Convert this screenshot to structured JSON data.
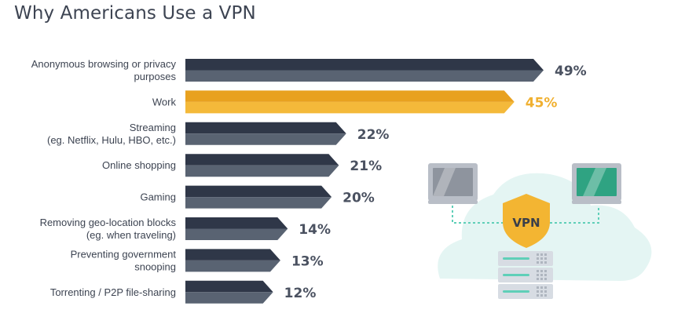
{
  "chart_data": {
    "type": "bar",
    "orientation": "horizontal",
    "title": "Why Americans Use a VPN",
    "categories": [
      [
        "Anonymous browsing or privacy",
        "purposes"
      ],
      [
        "Work"
      ],
      [
        "Streaming",
        "(eg. Netflix, Hulu, HBO, etc.)"
      ],
      [
        "Online shopping"
      ],
      [
        "Gaming"
      ],
      [
        "Removing geo-location blocks",
        "(eg. when traveling)"
      ],
      [
        "Preventing government",
        "snooping"
      ],
      [
        "Torrenting / P2P file-sharing"
      ]
    ],
    "values": [
      49,
      45,
      22,
      21,
      20,
      14,
      13,
      12
    ],
    "value_labels": [
      "49%",
      "45%",
      "22%",
      "21%",
      "20%",
      "14%",
      "13%",
      "12%"
    ],
    "highlight_index": 1,
    "xlim": [
      0,
      49
    ],
    "grid": false,
    "legend": "none"
  },
  "colors": {
    "bar_dark": "#2f3748",
    "bar_light": "#596372",
    "highlight_dark": "#e8a11f",
    "highlight_light": "#f4b93a",
    "label_text": "#3d4452",
    "value_text": "#4a5160",
    "highlight_text": "#f0b030",
    "illus_cloud": "#e4f5f3",
    "illus_shield": "#f3b532",
    "illus_dash": "#5fcfb8",
    "illus_device": "#b9bec7",
    "illus_screen_left": "#8e949e",
    "illus_screen_right": "#2fa382",
    "illus_server": "#d7dce3"
  },
  "illustration": {
    "shield_text": "VPN",
    "icons": [
      "laptop-icon",
      "vpn-shield-icon",
      "server-stack-icon",
      "cloud-icon"
    ]
  }
}
